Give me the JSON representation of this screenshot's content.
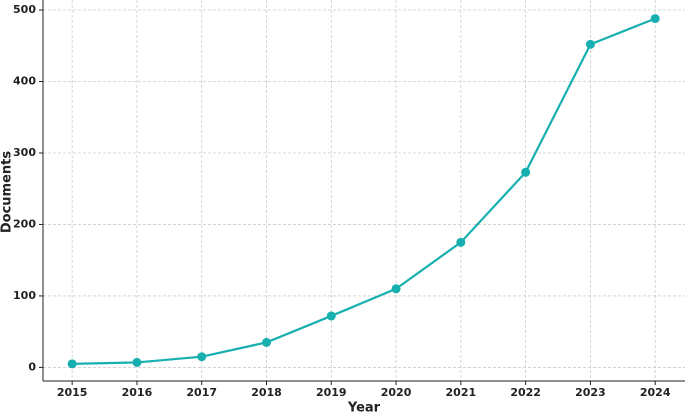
{
  "chart_data": {
    "type": "line",
    "x_label": "Year",
    "y_label": "Documents",
    "x": [
      2015,
      2016,
      2017,
      2018,
      2019,
      2020,
      2021,
      2022,
      2023,
      2024
    ],
    "series": [
      {
        "name": "Documents",
        "color": "#17afaf",
        "values": [
          5,
          7,
          15,
          35,
          72,
          110,
          175,
          273,
          452,
          488
        ]
      }
    ],
    "xlim": [
      2014.55,
      2024.46
    ],
    "xticks": [
      2015,
      2016,
      2017,
      2018,
      2019,
      2020,
      2021,
      2022,
      2023,
      2024
    ],
    "ylim": [
      -19,
      514
    ],
    "yticks": [
      0,
      100,
      200,
      300,
      400,
      500
    ],
    "grid": true
  }
}
